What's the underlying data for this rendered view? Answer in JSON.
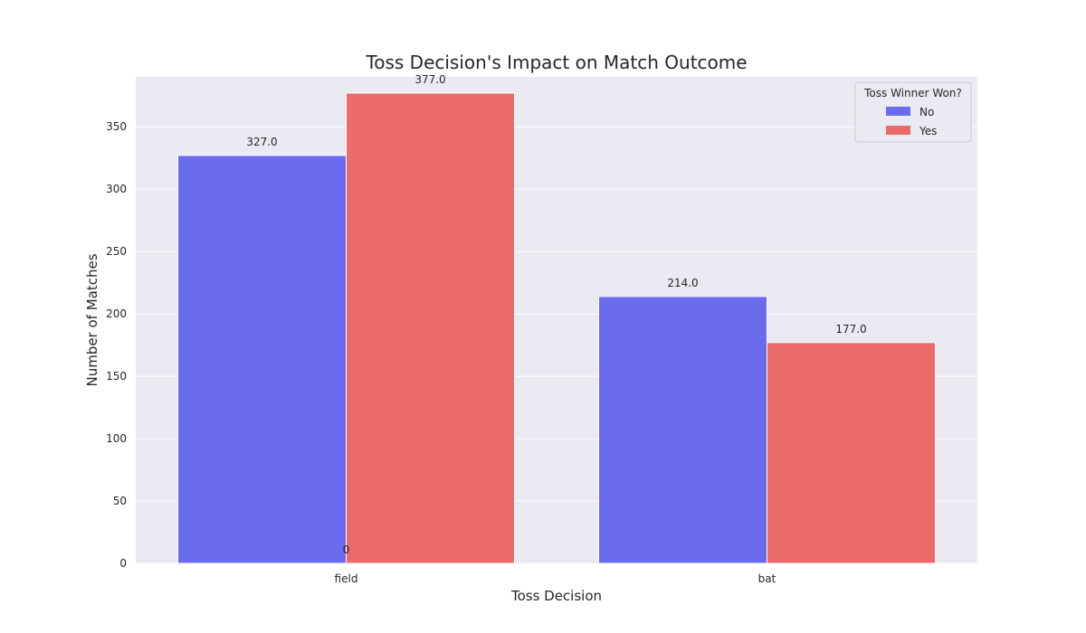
{
  "chart_data": {
    "type": "bar",
    "title": "Toss Decision's Impact on Match Outcome",
    "xlabel": "Toss Decision",
    "ylabel": "Number of Matches",
    "categories": [
      "field",
      "bat"
    ],
    "series": [
      {
        "name": "No",
        "values": [
          327,
          214
        ],
        "labels": [
          "327.0",
          "214.0"
        ],
        "color": "#6b6bed"
      },
      {
        "name": "Yes",
        "values": [
          377,
          177
        ],
        "labels": [
          "377.0",
          "177.0"
        ],
        "color": "#eb6a6a"
      }
    ],
    "extra_annotation": {
      "text": "0",
      "x": "field",
      "y": 0
    },
    "ylim": [
      0,
      390
    ],
    "yticks": [
      0,
      50,
      100,
      150,
      200,
      250,
      300,
      350
    ],
    "grid": true,
    "legend": {
      "title": "Toss Winner Won?",
      "placement": "top-right"
    },
    "colors": {
      "plot_background": "#eaeaf2",
      "grid": "#ffffff",
      "text": "#262626"
    }
  }
}
